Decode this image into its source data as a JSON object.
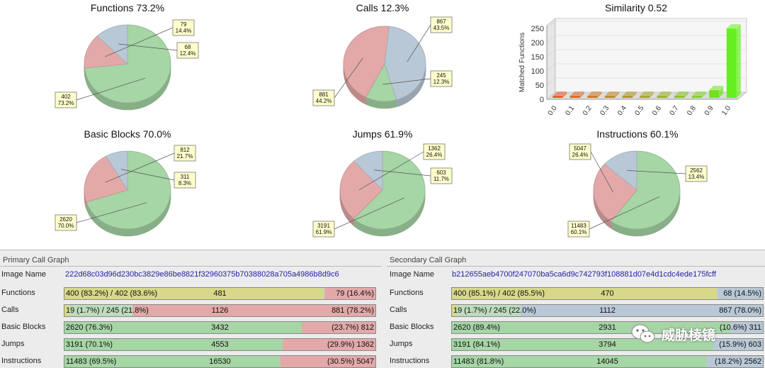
{
  "colors": {
    "green": "#a6d5a6",
    "red": "#e3a9a9",
    "blue": "#b9c8d6",
    "yellow": "#d8d88a",
    "pale": "#bcdcbc",
    "label_bg": "#ffffcc"
  },
  "pie_charts": [
    {
      "title": "Functions 73.2%",
      "slices": [
        {
          "value": 402,
          "pct": "73.2%",
          "color": "green"
        },
        {
          "value": 79,
          "pct": "14.4%",
          "color": "red"
        },
        {
          "value": 68,
          "pct": "12.4%",
          "color": "blue"
        }
      ]
    },
    {
      "title": "Calls 12.3%",
      "slices": [
        {
          "value": 245,
          "pct": "12.3%",
          "color": "green"
        },
        {
          "value": 881,
          "pct": "44.2%",
          "color": "red"
        },
        {
          "value": 867,
          "pct": "43.5%",
          "color": "blue"
        }
      ]
    },
    {
      "title": "Basic Blocks 70.0%",
      "slices": [
        {
          "value": 2620,
          "pct": "70.0%",
          "color": "green"
        },
        {
          "value": 812,
          "pct": "21.7%",
          "color": "red"
        },
        {
          "value": 311,
          "pct": "8.3%",
          "color": "blue"
        }
      ]
    },
    {
      "title": "Jumps 61.9%",
      "slices": [
        {
          "value": 3191,
          "pct": "61.9%",
          "color": "green"
        },
        {
          "value": 1362,
          "pct": "26.4%",
          "color": "red"
        },
        {
          "value": 603,
          "pct": "11.7%",
          "color": "blue"
        }
      ]
    },
    {
      "title": "Instructions 60.1%",
      "slices": [
        {
          "value": 11483,
          "pct": "60.1%",
          "color": "green"
        },
        {
          "value": 5047,
          "pct": "26.4%",
          "color": "red"
        },
        {
          "value": 2562,
          "pct": "13.4%",
          "color": "blue"
        }
      ]
    }
  ],
  "chart_data": {
    "type": "bar",
    "title": "Similarity 0.52",
    "ylabel": "Matched Functions",
    "xlabel": "",
    "categories": [
      "0.0",
      "0.1",
      "0.2",
      "0.3",
      "0.4",
      "0.5",
      "0.6",
      "0.7",
      "0.8",
      "0.9",
      "1.0"
    ],
    "values": [
      1,
      1,
      1,
      1,
      1,
      1,
      5,
      1,
      3,
      28,
      245
    ],
    "yticks": [
      "0",
      "50",
      "100",
      "150",
      "200",
      "250"
    ],
    "ylim": [
      0,
      260
    ],
    "grid": true
  },
  "primary": {
    "title": "Primary Call Graph",
    "image_name_label": "Image Name",
    "image_hash": "222d68c03d96d230bc3829e86be8821f32960375b70388028a705a4986b8d9c6",
    "rows": [
      {
        "label": "Functions",
        "left": "400 (83.2%) / 402 (83.6%)",
        "center": "481",
        "right": "79 (16.4%)",
        "segments": [
          {
            "frac": 0.832,
            "color": "yellow"
          },
          {
            "frac": 0.004,
            "color": "pale"
          },
          {
            "frac": 0.164,
            "color": "red"
          }
        ]
      },
      {
        "label": "Calls",
        "left": "19 (1.7%) / 245 (21.8%)",
        "center": "1126",
        "right": "881 (78.2%)",
        "segments": [
          {
            "frac": 0.017,
            "color": "yellow"
          },
          {
            "frac": 0.201,
            "color": "pale"
          },
          {
            "frac": 0.782,
            "color": "red"
          }
        ]
      },
      {
        "label": "Basic Blocks",
        "left": "2620 (76.3%)",
        "center": "3432",
        "right": "(23.7%) 812",
        "segments": [
          {
            "frac": 0.763,
            "color": "green"
          },
          {
            "frac": 0.237,
            "color": "red"
          }
        ]
      },
      {
        "label": "Jumps",
        "left": "3191 (70.1%)",
        "center": "4553",
        "right": "(29.9%) 1362",
        "segments": [
          {
            "frac": 0.701,
            "color": "green"
          },
          {
            "frac": 0.299,
            "color": "red"
          }
        ]
      },
      {
        "label": "Instructions",
        "left": "11483 (69.5%)",
        "center": "16530",
        "right": "(30.5%) 5047",
        "segments": [
          {
            "frac": 0.695,
            "color": "green"
          },
          {
            "frac": 0.305,
            "color": "red"
          }
        ]
      }
    ]
  },
  "secondary": {
    "title": "Secondary Call Graph",
    "image_name_label": "Image Name",
    "image_hash": "b212655aeb4700f247070ba5ca6d9c742793f108881d07e4d1cdc4ede175fcff",
    "rows": [
      {
        "label": "Functions",
        "left": "400 (85.1%) / 402 (85.5%)",
        "center": "470",
        "right": "68 (14.5%)",
        "segments": [
          {
            "frac": 0.851,
            "color": "yellow"
          },
          {
            "frac": 0.004,
            "color": "pale"
          },
          {
            "frac": 0.145,
            "color": "blue"
          }
        ]
      },
      {
        "label": "Calls",
        "left": "19 (1.7%) / 245 (22.0%)",
        "center": "1112",
        "right": "867 (78.0%)",
        "segments": [
          {
            "frac": 0.017,
            "color": "yellow"
          },
          {
            "frac": 0.203,
            "color": "pale"
          },
          {
            "frac": 0.78,
            "color": "blue"
          }
        ]
      },
      {
        "label": "Basic Blocks",
        "left": "2620 (89.4%)",
        "center": "2931",
        "right": "(10.6%) 311",
        "segments": [
          {
            "frac": 0.894,
            "color": "green"
          },
          {
            "frac": 0.106,
            "color": "blue"
          }
        ]
      },
      {
        "label": "Jumps",
        "left": "3191 (84.1%)",
        "center": "3794",
        "right": "(15.9%) 603",
        "segments": [
          {
            "frac": 0.841,
            "color": "green"
          },
          {
            "frac": 0.159,
            "color": "blue"
          }
        ]
      },
      {
        "label": "Instructions",
        "left": "11483 (81.8%)",
        "center": "14045",
        "right": "(18.2%) 2562",
        "segments": [
          {
            "frac": 0.818,
            "color": "green"
          },
          {
            "frac": 0.182,
            "color": "blue"
          }
        ]
      }
    ]
  },
  "watermark": {
    "text": "威胁棱镜",
    "icon": "wechat-icon"
  }
}
